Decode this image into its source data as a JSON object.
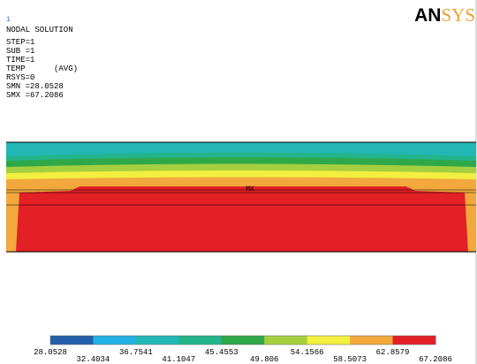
{
  "window_number": "1",
  "title": "NODAL SOLUTION",
  "info_lines": [
    "STEP=1",
    "SUB =1",
    "TIME=1",
    "TEMP      (AVG)",
    "RSYS=0",
    "SMN =28.0528",
    "SMX =67.2086"
  ],
  "logo": {
    "part1": "AN",
    "part2": "SYS"
  },
  "max_label": "MX",
  "legend": {
    "colors": [
      "#2360a8",
      "#22b1e2",
      "#22b7b5",
      "#24b48c",
      "#2fa84a",
      "#a6cf3f",
      "#f2ef40",
      "#f2a83c",
      "#e22026"
    ],
    "labels": [
      "28.0528",
      "32.4034",
      "36.7541",
      "41.1047",
      "45.4553",
      "49.806",
      "54.1566",
      "58.5073",
      "62.8579",
      "67.2086"
    ]
  }
}
